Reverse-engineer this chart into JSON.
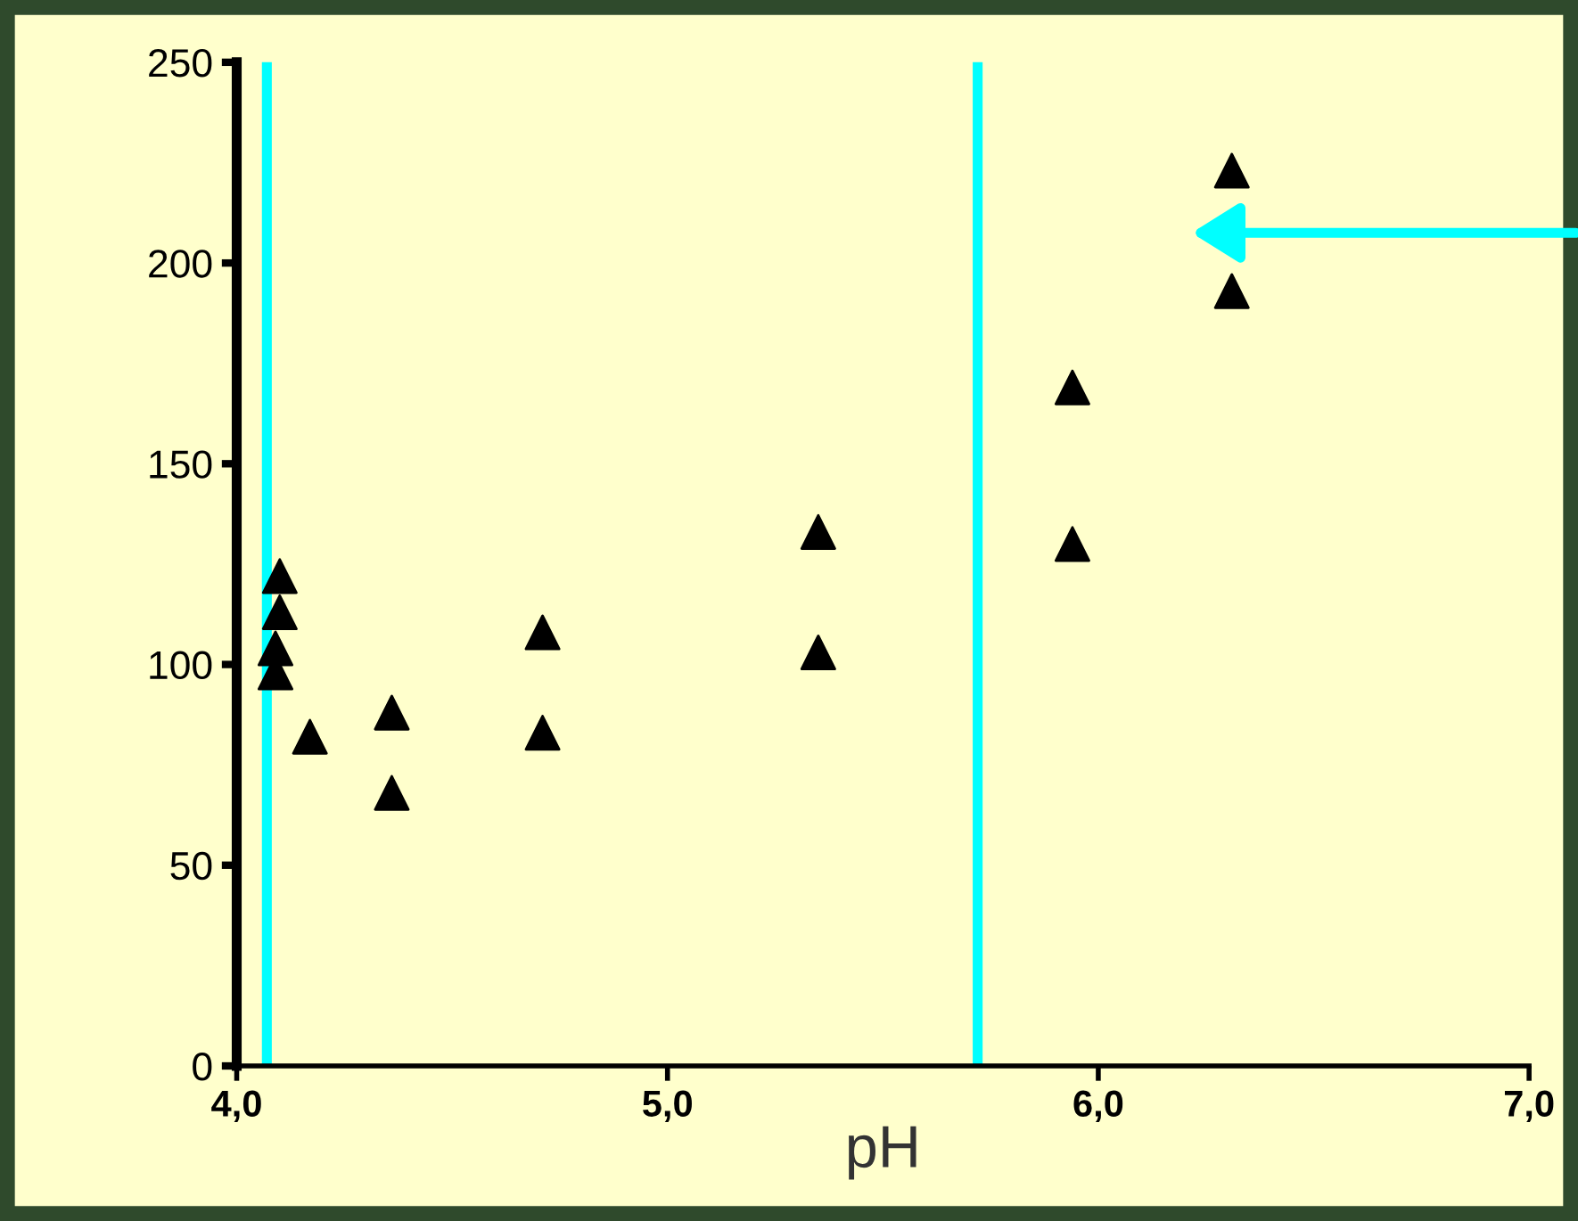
{
  "chart_data": {
    "type": "scatter",
    "xlabel": "pH",
    "x": [
      4.1,
      4.1,
      4.09,
      4.09,
      4.17,
      4.36,
      4.36,
      4.71,
      4.71,
      5.35,
      5.35,
      5.94,
      5.94,
      6.31,
      6.31
    ],
    "series": [
      {
        "color": "#000000",
        "values": [
          122,
          113,
          104,
          98,
          82,
          88,
          68,
          108,
          83,
          133,
          103,
          169,
          130,
          223,
          193
        ]
      }
    ],
    "marker": "triangle",
    "xlim": [
      4,
      7
    ],
    "xticks": [
      {
        "value": 4,
        "label": "4,0"
      },
      {
        "value": 5,
        "label": "5,0"
      },
      {
        "value": 6,
        "label": "6,0"
      },
      {
        "value": 7,
        "label": "7,0"
      }
    ],
    "ylim": [
      0,
      250
    ],
    "yticks": [
      0,
      50,
      100,
      150,
      200,
      250
    ],
    "ref_lines": [
      {
        "axis": "x",
        "value": 4.07,
        "color": "#00ffff"
      },
      {
        "axis": "x",
        "value": 5.72,
        "color": "#00ffff"
      }
    ],
    "grid": false,
    "legend": false
  }
}
